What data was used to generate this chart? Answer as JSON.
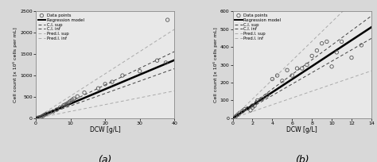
{
  "panel_a": {
    "xlim": [
      0,
      40
    ],
    "ylim": [
      0,
      2500
    ],
    "xticks": [
      0,
      10,
      20,
      30,
      40
    ],
    "yticks": [
      0,
      500,
      1000,
      1500,
      2000,
      2500
    ],
    "xlabel": "DCW [g/L]",
    "ylabel": "Cell count [x 10⁶ cells per mL]",
    "label": "(a)",
    "reg_slope": 34.0,
    "reg_intercept": 0.0,
    "ci_sup_slope": 39.0,
    "ci_sup_intercept": 0.0,
    "ci_inf_slope": 29.0,
    "ci_inf_intercept": 0.0,
    "pred_sup_slope": 52.0,
    "pred_sup_intercept": 0.0,
    "pred_inf_slope": 16.0,
    "pred_inf_intercept": 0.0,
    "data_x": [
      0.5,
      1.0,
      1.5,
      2.0,
      2.5,
      3.0,
      4.0,
      5.0,
      6.0,
      7.0,
      8.0,
      8.5,
      9.0,
      9.5,
      10.0,
      10.5,
      11.0,
      12.0,
      14.0,
      18.0,
      20.0,
      22.0,
      25.0,
      30.0,
      35.0,
      37.5,
      38.0
    ],
    "data_y": [
      10,
      20,
      30,
      50,
      80,
      100,
      130,
      160,
      200,
      250,
      300,
      320,
      340,
      370,
      400,
      430,
      460,
      510,
      600,
      700,
      800,
      850,
      1000,
      1100,
      1350,
      1300,
      2300
    ]
  },
  "panel_b": {
    "xlim": [
      0,
      14
    ],
    "ylim": [
      0,
      600
    ],
    "xticks": [
      0,
      2,
      4,
      6,
      8,
      10,
      12,
      14
    ],
    "yticks": [
      0,
      100,
      200,
      300,
      400,
      500,
      600
    ],
    "xlabel": "DCW [g/L]",
    "ylabel": "Cell count [x 10⁶ cells per mL]",
    "label": "(b)",
    "reg_slope": 36.5,
    "reg_intercept": 0.0,
    "ci_sup_slope": 41.0,
    "ci_sup_intercept": 0.0,
    "ci_inf_slope": 32.0,
    "ci_inf_intercept": 0.0,
    "pred_sup_slope": 54.0,
    "pred_sup_intercept": 0.0,
    "pred_inf_slope": 19.0,
    "pred_inf_intercept": 0.0,
    "data_x": [
      0.3,
      0.5,
      0.7,
      1.0,
      1.2,
      1.5,
      1.8,
      2.0,
      2.2,
      2.5,
      3.0,
      3.5,
      4.0,
      4.5,
      5.0,
      5.5,
      6.0,
      6.5,
      7.0,
      7.5,
      8.0,
      8.5,
      9.0,
      9.5,
      10.0,
      10.5,
      11.0,
      12.0,
      13.0
    ],
    "data_y": [
      10,
      20,
      30,
      40,
      50,
      55,
      45,
      60,
      70,
      100,
      110,
      130,
      220,
      240,
      210,
      270,
      240,
      280,
      280,
      300,
      350,
      380,
      420,
      430,
      290,
      370,
      430,
      340,
      410
    ]
  },
  "legend_entries": [
    "Data points",
    "Regression model",
    "C.I. sup",
    "C.I. inf",
    "Pred.I. sup",
    "Pred.I. inf"
  ],
  "plot_bg_color": "#e8e8e8",
  "fig_bg_color": "#d8d8d8",
  "marker_color": "#555555",
  "reg_color": "#000000",
  "ci_color": "#404040",
  "pred_color": "#aaaaaa",
  "border_color": "#888888"
}
